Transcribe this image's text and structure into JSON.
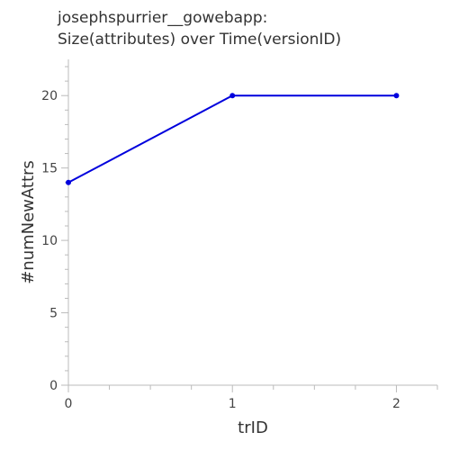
{
  "title": {
    "line1": "josephspurrier__gowebapp:",
    "line2": "Size(attributes) over Time(versionID)"
  },
  "colors": {
    "series": "#0000dd",
    "axis": "#bbbbbb",
    "text": "#444444"
  },
  "chart_data": {
    "type": "line",
    "title": "josephspurrier__gowebapp: Size(attributes) over Time(versionID)",
    "xlabel": "trID",
    "ylabel": "#numNewAttrs",
    "x": [
      0,
      1,
      2
    ],
    "series": [
      {
        "values": [
          14,
          20,
          20
        ]
      }
    ],
    "xlim": [
      0,
      2.25
    ],
    "ylim": [
      0,
      22.5
    ],
    "xticks": [
      0,
      1,
      2
    ],
    "xminorticks": [
      0.25,
      0.5,
      0.75,
      1.25,
      1.5,
      1.75,
      2.25
    ],
    "yticks": [
      0,
      5,
      10,
      15,
      20
    ],
    "yminorticks": [
      1,
      2,
      3,
      4,
      6,
      7,
      8,
      9,
      11,
      12,
      13,
      14,
      16,
      17,
      18,
      19,
      21,
      22
    ],
    "grid": false,
    "legend": "none"
  }
}
